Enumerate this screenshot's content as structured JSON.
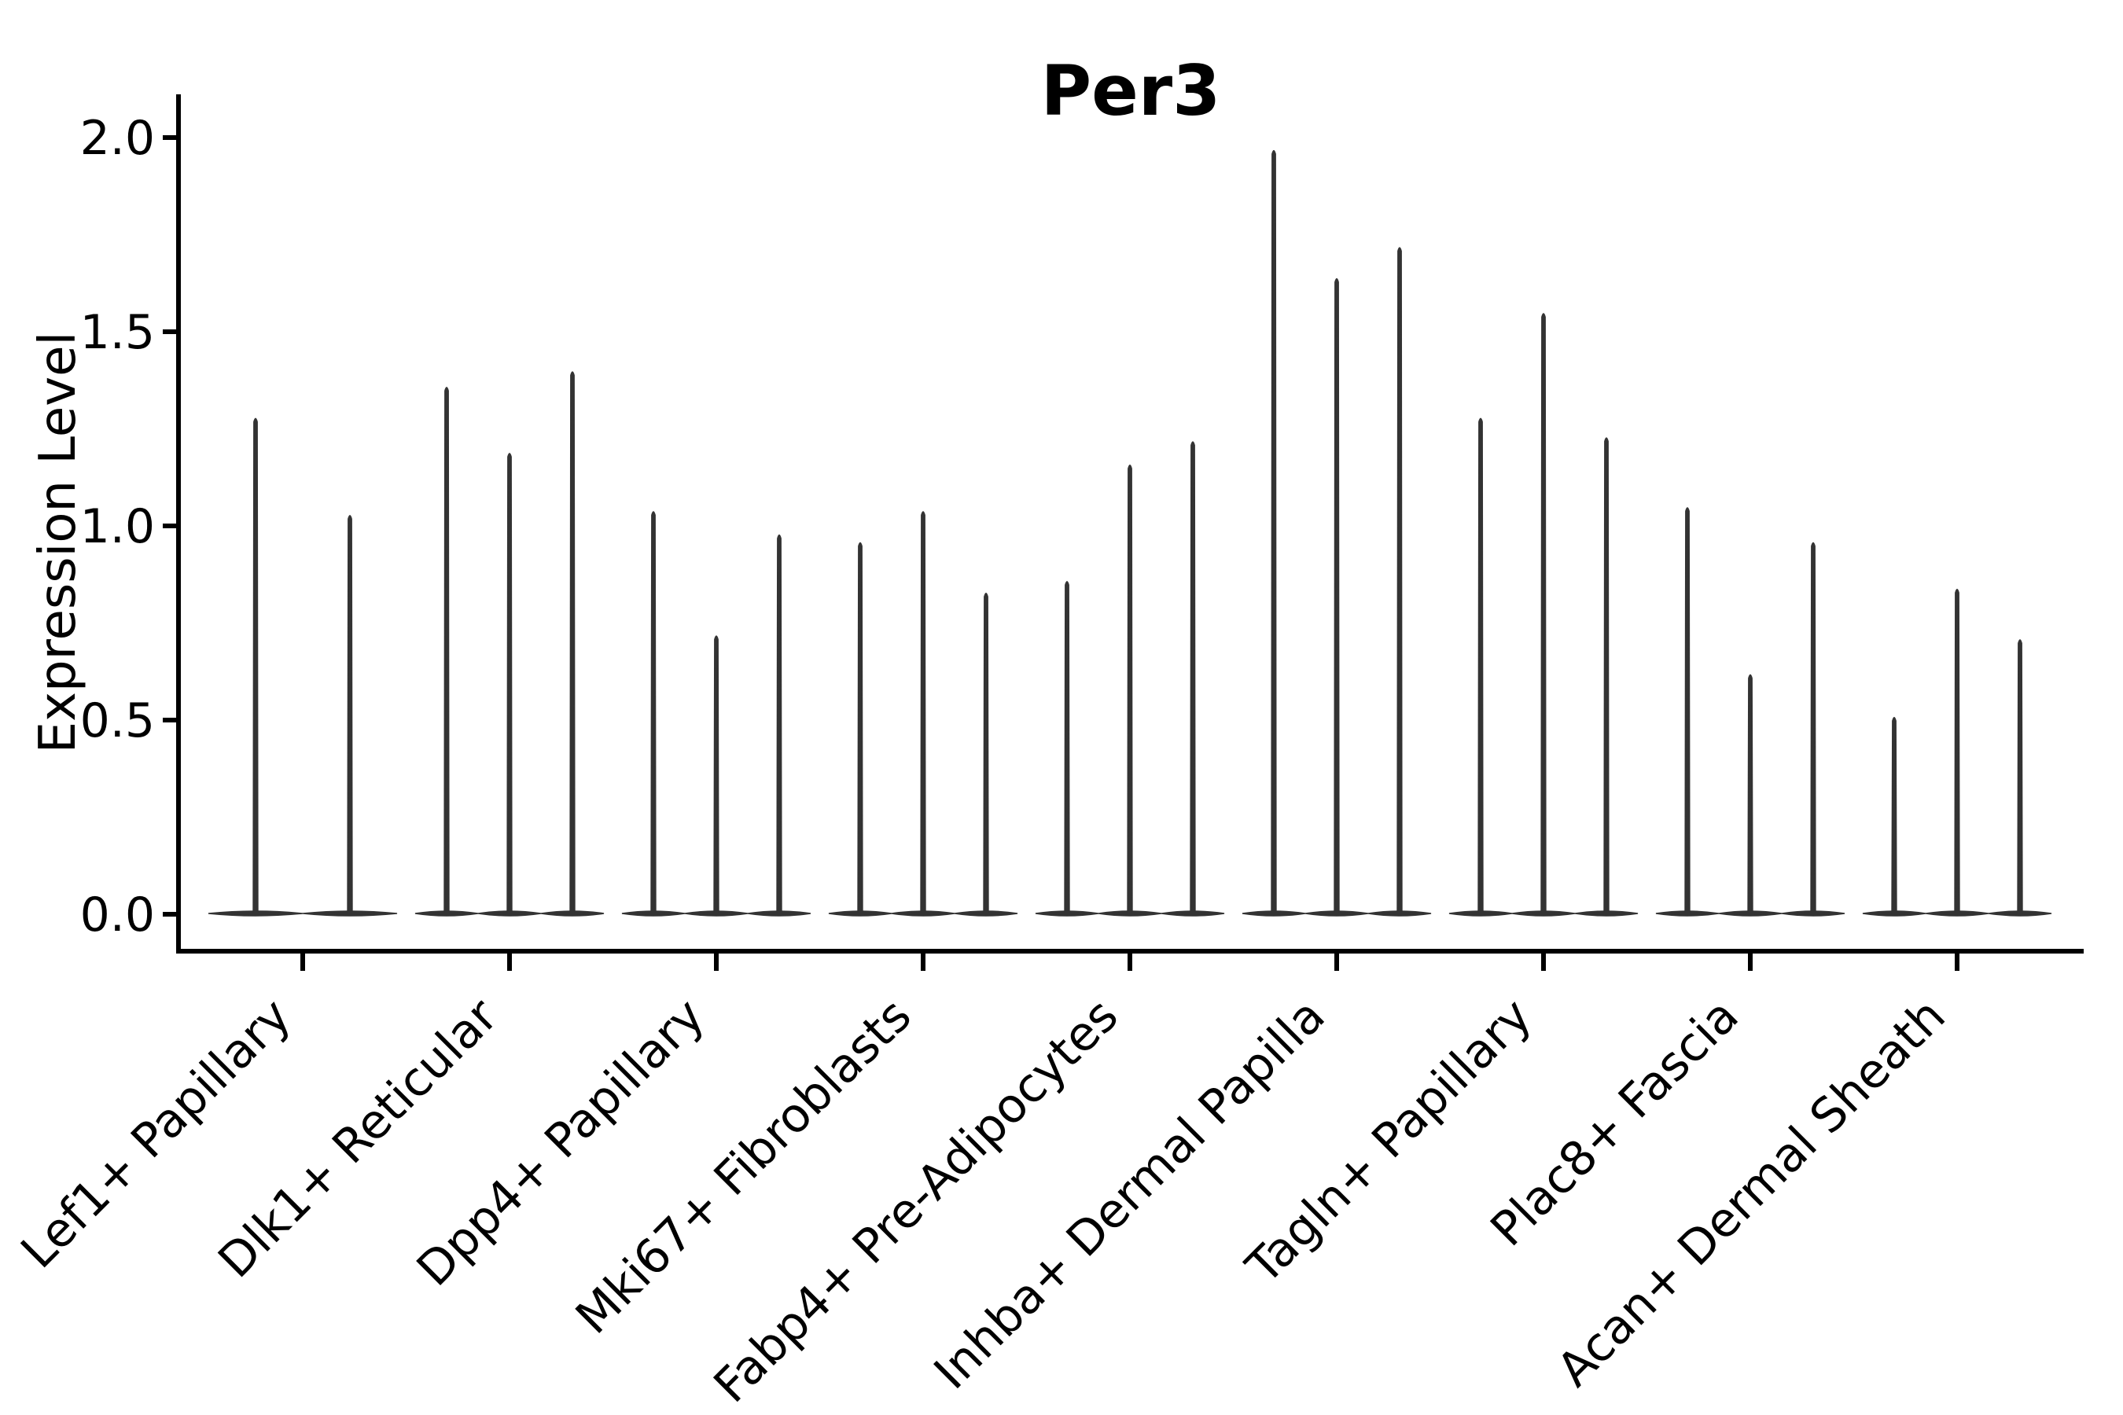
{
  "chart_data": {
    "type": "violin",
    "title": "Per3",
    "xlabel": "",
    "ylabel": "Expression Level",
    "yticks": [
      0.0,
      0.5,
      1.0,
      1.5,
      2.0
    ],
    "ylim": [
      0,
      2.1
    ],
    "grid": false,
    "legend": "none",
    "categories": [
      "Lef1+ Papillary",
      "Dlk1+ Reticular",
      "Dpp4+ Papillary",
      "Mki67+ Fibroblasts",
      "Fabp4+ Pre-Adipocytes",
      "Inhba+ Dermal Papilla",
      "Tagln+ Papillary",
      "Plac8+ Fascia",
      "Acan+ Dermal Sheath"
    ],
    "groups": [
      {
        "category": "Lef1+ Papillary",
        "violin_peaks": [
          1.28,
          1.03
        ]
      },
      {
        "category": "Dlk1+ Reticular",
        "violin_peaks": [
          1.36,
          1.19,
          1.4
        ]
      },
      {
        "category": "Dpp4+ Papillary",
        "violin_peaks": [
          1.04,
          0.72,
          0.98
        ]
      },
      {
        "category": "Mki67+ Fibroblasts",
        "violin_peaks": [
          0.96,
          1.04,
          0.83
        ]
      },
      {
        "category": "Fabp4+ Pre-Adipocytes",
        "violin_peaks": [
          0.86,
          1.16,
          1.22
        ]
      },
      {
        "category": "Inhba+ Dermal Papilla",
        "violin_peaks": [
          1.97,
          1.64,
          1.72
        ]
      },
      {
        "category": "Tagln+ Papillary",
        "violin_peaks": [
          1.28,
          1.55,
          1.23
        ]
      },
      {
        "category": "Plac8+ Fascia",
        "violin_peaks": [
          1.05,
          0.62,
          0.96
        ]
      },
      {
        "category": "Acan+ Dermal Sheath",
        "violin_peaks": [
          0.51,
          0.84,
          0.71
        ]
      }
    ],
    "colors": {
      "violin": "#333333",
      "axis": "#000000",
      "text": "#000000"
    }
  }
}
